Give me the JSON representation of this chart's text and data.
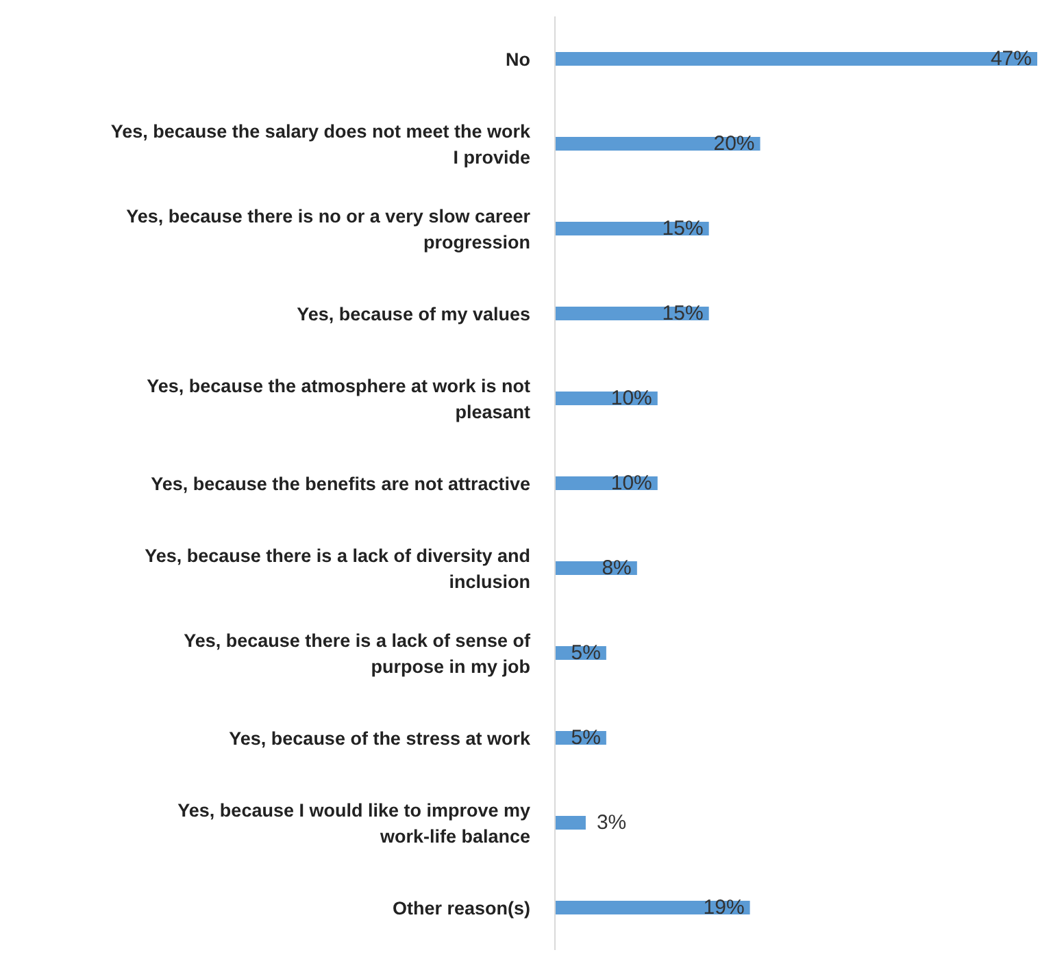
{
  "chart_data": {
    "type": "bar",
    "orientation": "horizontal",
    "categories": [
      "No",
      "Yes, because the salary does not meet the work I provide",
      "Yes, because there is no or a very slow career progression",
      "Yes, because of my values",
      "Yes, because the atmosphere at work is not pleasant",
      "Yes, because the benefits are not attractive",
      "Yes, because there is a lack of diversity and inclusion",
      "Yes, because there is a lack of sense of purpose in my job",
      "Yes, because of the stress at work",
      "Yes, because I would like to improve my work-life balance",
      "Other reason(s)"
    ],
    "values": [
      47,
      20,
      15,
      15,
      10,
      10,
      8,
      5,
      5,
      3,
      19
    ],
    "value_labels": [
      "47%",
      "20%",
      "15%",
      "15%",
      "10%",
      "10%",
      "8%",
      "5%",
      "5%",
      "3%",
      "19%"
    ],
    "color": "#5b9bd5"
  }
}
